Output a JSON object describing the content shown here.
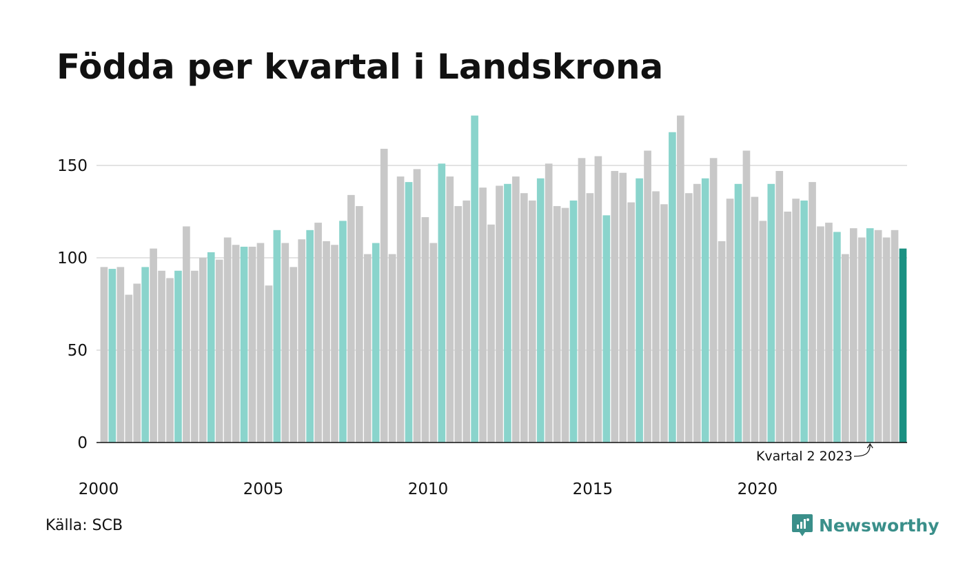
{
  "title": "Födda per kvartal i Landskrona",
  "source": "Källa: SCB",
  "brand": "Newsworthy",
  "brand_icon": "newsworthy-logo-icon",
  "colors": {
    "other": "#c8c8c8",
    "q2": "#8ad4cc",
    "latest": "#1b9182",
    "axis": "#111111",
    "grid": "#e3e3e3",
    "brand": "#3a8f8a"
  },
  "chart_data": {
    "type": "bar",
    "title": "Födda per kvartal i Landskrona",
    "xlabel": "",
    "ylabel": "",
    "ylim": [
      0,
      180
    ],
    "yticks": [
      0,
      50,
      100,
      150
    ],
    "xticks": [
      "2000",
      "2005",
      "2010",
      "2015",
      "2020"
    ],
    "grid": true,
    "highlight": "Kvartal 2 (turkos), senaste kvartal (mörk turkos)",
    "annotation": {
      "text": "Kvartal 2 2023",
      "target": "2023-Q2"
    },
    "categories": [
      "2000-Q1",
      "2000-Q2",
      "2000-Q3",
      "2000-Q4",
      "2001-Q1",
      "2001-Q2",
      "2001-Q3",
      "2001-Q4",
      "2002-Q1",
      "2002-Q2",
      "2002-Q3",
      "2002-Q4",
      "2003-Q1",
      "2003-Q2",
      "2003-Q3",
      "2003-Q4",
      "2004-Q1",
      "2004-Q2",
      "2004-Q3",
      "2004-Q4",
      "2005-Q1",
      "2005-Q2",
      "2005-Q3",
      "2005-Q4",
      "2006-Q1",
      "2006-Q2",
      "2006-Q3",
      "2006-Q4",
      "2007-Q1",
      "2007-Q2",
      "2007-Q3",
      "2007-Q4",
      "2008-Q1",
      "2008-Q2",
      "2008-Q3",
      "2008-Q4",
      "2009-Q1",
      "2009-Q2",
      "2009-Q3",
      "2009-Q4",
      "2010-Q1",
      "2010-Q2",
      "2010-Q3",
      "2010-Q4",
      "2011-Q1",
      "2011-Q2",
      "2011-Q3",
      "2011-Q4",
      "2012-Q1",
      "2012-Q2",
      "2012-Q3",
      "2012-Q4",
      "2013-Q1",
      "2013-Q2",
      "2013-Q3",
      "2013-Q4",
      "2014-Q1",
      "2014-Q2",
      "2014-Q3",
      "2014-Q4",
      "2015-Q1",
      "2015-Q2",
      "2015-Q3",
      "2015-Q4",
      "2016-Q1",
      "2016-Q2",
      "2016-Q3",
      "2016-Q4",
      "2017-Q1",
      "2017-Q2",
      "2017-Q3",
      "2017-Q4",
      "2018-Q1",
      "2018-Q2",
      "2018-Q3",
      "2018-Q4",
      "2019-Q1",
      "2019-Q2",
      "2019-Q3",
      "2019-Q4",
      "2020-Q1",
      "2020-Q2",
      "2020-Q3",
      "2020-Q4",
      "2021-Q1",
      "2021-Q2",
      "2021-Q3",
      "2021-Q4",
      "2022-Q1",
      "2022-Q2",
      "2022-Q3",
      "2022-Q4",
      "2023-Q1",
      "2023-Q2",
      "2023-Q3",
      "2023-Q4",
      "2024-Q1",
      "2024-Q2"
    ],
    "values": [
      95,
      94,
      95,
      80,
      86,
      95,
      105,
      93,
      89,
      93,
      117,
      93,
      100,
      103,
      99,
      111,
      107,
      106,
      106,
      108,
      85,
      115,
      108,
      95,
      110,
      115,
      119,
      109,
      107,
      120,
      134,
      128,
      102,
      108,
      159,
      102,
      144,
      141,
      148,
      122,
      108,
      151,
      144,
      128,
      131,
      177,
      138,
      118,
      139,
      140,
      144,
      135,
      131,
      143,
      151,
      128,
      127,
      131,
      154,
      135,
      155,
      123,
      147,
      146,
      130,
      143,
      158,
      136,
      129,
      168,
      177,
      135,
      140,
      143,
      154,
      109,
      132,
      140,
      158,
      133,
      120,
      140,
      147,
      125,
      132,
      131,
      141,
      117,
      119,
      114,
      102,
      116,
      111,
      116,
      115,
      111,
      115,
      105
    ]
  }
}
